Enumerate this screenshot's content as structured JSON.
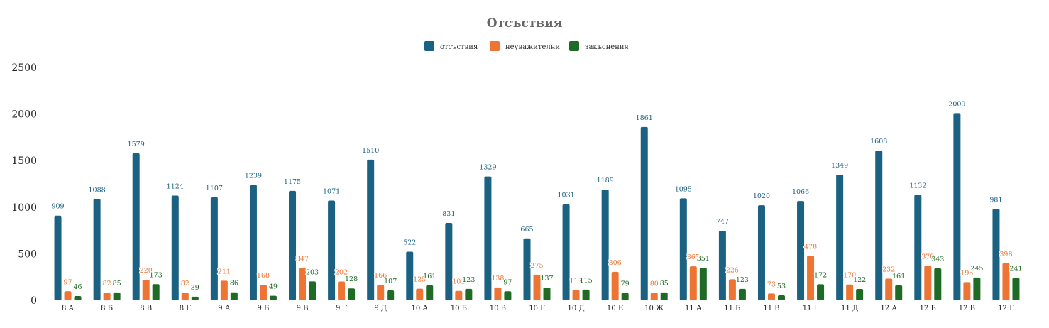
{
  "chart_data": {
    "type": "bar",
    "title": "Отсъствия",
    "xlabel": "",
    "ylabel": "",
    "ylim": [
      0,
      2500
    ],
    "yticks": [
      0,
      500,
      1000,
      1500,
      2000,
      2500
    ],
    "grid": false,
    "legend_position": "top-center",
    "categories": [
      "8 А",
      "8 Б",
      "8 В",
      "8 Г",
      "9 А",
      "9 Б",
      "9 В",
      "9 Г",
      "9 Д",
      "10 А",
      "10 Б",
      "10 В",
      "10 Г",
      "10 Д",
      "10 Е",
      "10 Ж",
      "11 А",
      "11 Б",
      "11 В",
      "11 Г",
      "11 Д",
      "12 А",
      "12 Б",
      "12 В",
      "12 Г"
    ],
    "series": [
      {
        "name": "отсъствия",
        "color": "#1b6182",
        "values": [
          909,
          1088,
          1579,
          1124,
          1107,
          1239,
          1175,
          1071,
          1510,
          522,
          831,
          1329,
          665,
          1031,
          1189,
          1861,
          1095,
          747,
          1020,
          1066,
          1349,
          1608,
          1132,
          2009,
          981
        ]
      },
      {
        "name": "неуважителни",
        "color": "#ee7433",
        "values": [
          97,
          82,
          220,
          82,
          211,
          168,
          347,
          202,
          166,
          125,
          101,
          138,
          275,
          111,
          306,
          80,
          365,
          226,
          73,
          478,
          170,
          232,
          370,
          195,
          398
        ]
      },
      {
        "name": "закъснения",
        "color": "#1d6b24",
        "values": [
          46,
          85,
          173,
          39,
          86,
          49,
          203,
          128,
          107,
          161,
          123,
          97,
          137,
          115,
          79,
          85,
          351,
          123,
          53,
          172,
          122,
          161,
          343,
          245,
          241
        ]
      }
    ]
  }
}
